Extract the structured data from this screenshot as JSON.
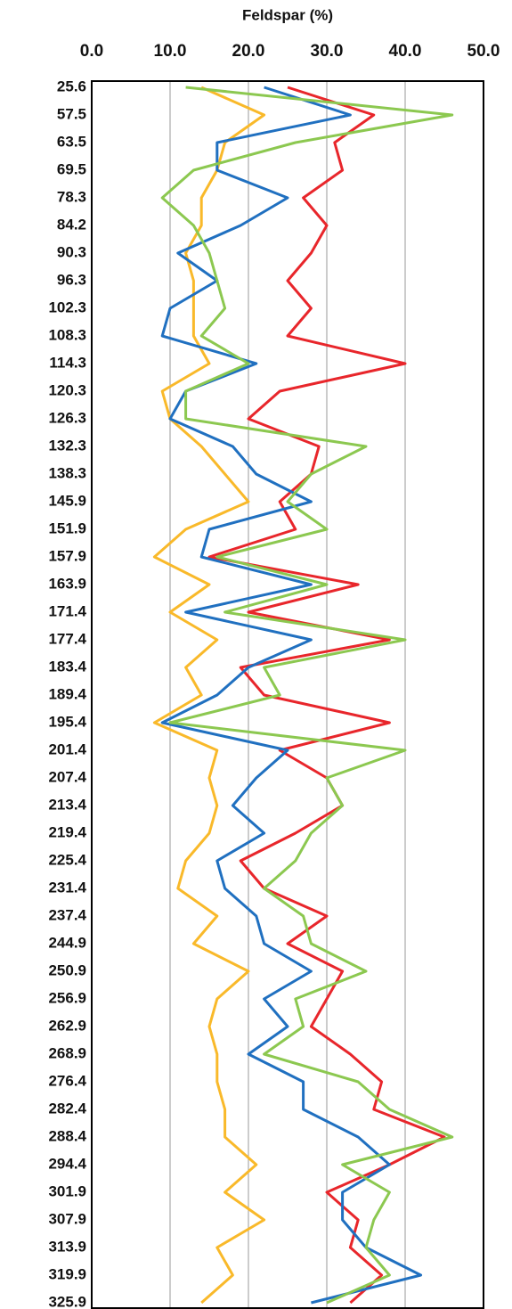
{
  "chart_data": {
    "type": "line",
    "orientation": "vertical",
    "x_label": "Feldspar (%)",
    "xlim": [
      0,
      50
    ],
    "xticks": [
      {
        "value": 0,
        "label": "0.0"
      },
      {
        "value": 10,
        "label": "10.0"
      },
      {
        "value": 20,
        "label": "20.0"
      },
      {
        "value": 30,
        "label": "30.0"
      },
      {
        "value": 40,
        "label": "40.0"
      },
      {
        "value": 50,
        "label": "50.0"
      }
    ],
    "grid": true,
    "categories": [
      "25.6",
      "57.5",
      "63.5",
      "69.5",
      "78.3",
      "84.2",
      "90.3",
      "96.3",
      "102.3",
      "108.3",
      "114.3",
      "120.3",
      "126.3",
      "132.3",
      "138.3",
      "145.9",
      "151.9",
      "157.9",
      "163.9",
      "171.4",
      "177.4",
      "183.4",
      "189.4",
      "195.4",
      "201.4",
      "207.4",
      "213.4",
      "219.4",
      "225.4",
      "231.4",
      "237.4",
      "244.9",
      "250.9",
      "256.9",
      "262.9",
      "268.9",
      "276.4",
      "282.4",
      "288.4",
      "294.4",
      "301.9",
      "307.9",
      "313.9",
      "319.9",
      "325.9"
    ],
    "series": [
      {
        "color": "#e8262b",
        "values": [
          25,
          36,
          31,
          32,
          27,
          30,
          28,
          25,
          28,
          25,
          40,
          24,
          20,
          29,
          28,
          24,
          26,
          15,
          34,
          20,
          38,
          19,
          22,
          38,
          24,
          30,
          32,
          26,
          19,
          22,
          30,
          25,
          32,
          30,
          28,
          33,
          37,
          36,
          45,
          38,
          30,
          34,
          33,
          37,
          33
        ]
      },
      {
        "color": "#f9b92a",
        "values": [
          14,
          22,
          17,
          16,
          14,
          14,
          12,
          13,
          13,
          13,
          15,
          9,
          10,
          14,
          17,
          20,
          12,
          8,
          15,
          10,
          16,
          12,
          14,
          8,
          16,
          15,
          16,
          15,
          12,
          11,
          16,
          13,
          20,
          16,
          15,
          16,
          16,
          17,
          17,
          21,
          17,
          22,
          16,
          18,
          14
        ]
      },
      {
        "color": "#2070c0",
        "values": [
          22,
          33,
          16,
          16,
          25,
          19,
          11,
          16,
          10,
          9,
          21,
          12,
          10,
          18,
          21,
          28,
          15,
          14,
          28,
          12,
          28,
          20,
          16,
          9,
          25,
          21,
          18,
          22,
          16,
          17,
          21,
          22,
          28,
          22,
          25,
          20,
          27,
          27,
          34,
          38,
          32,
          32,
          35,
          42,
          28
        ]
      },
      {
        "color": "#8cc850",
        "values": [
          12,
          46,
          26,
          13,
          9,
          13,
          15,
          16,
          17,
          14,
          20,
          12,
          12,
          35,
          28,
          25,
          30,
          16,
          30,
          17,
          40,
          22,
          24,
          10,
          40,
          30,
          32,
          28,
          26,
          22,
          27,
          28,
          35,
          26,
          27,
          22,
          34,
          38,
          46,
          32,
          38,
          36,
          35,
          38,
          30
        ]
      }
    ]
  }
}
